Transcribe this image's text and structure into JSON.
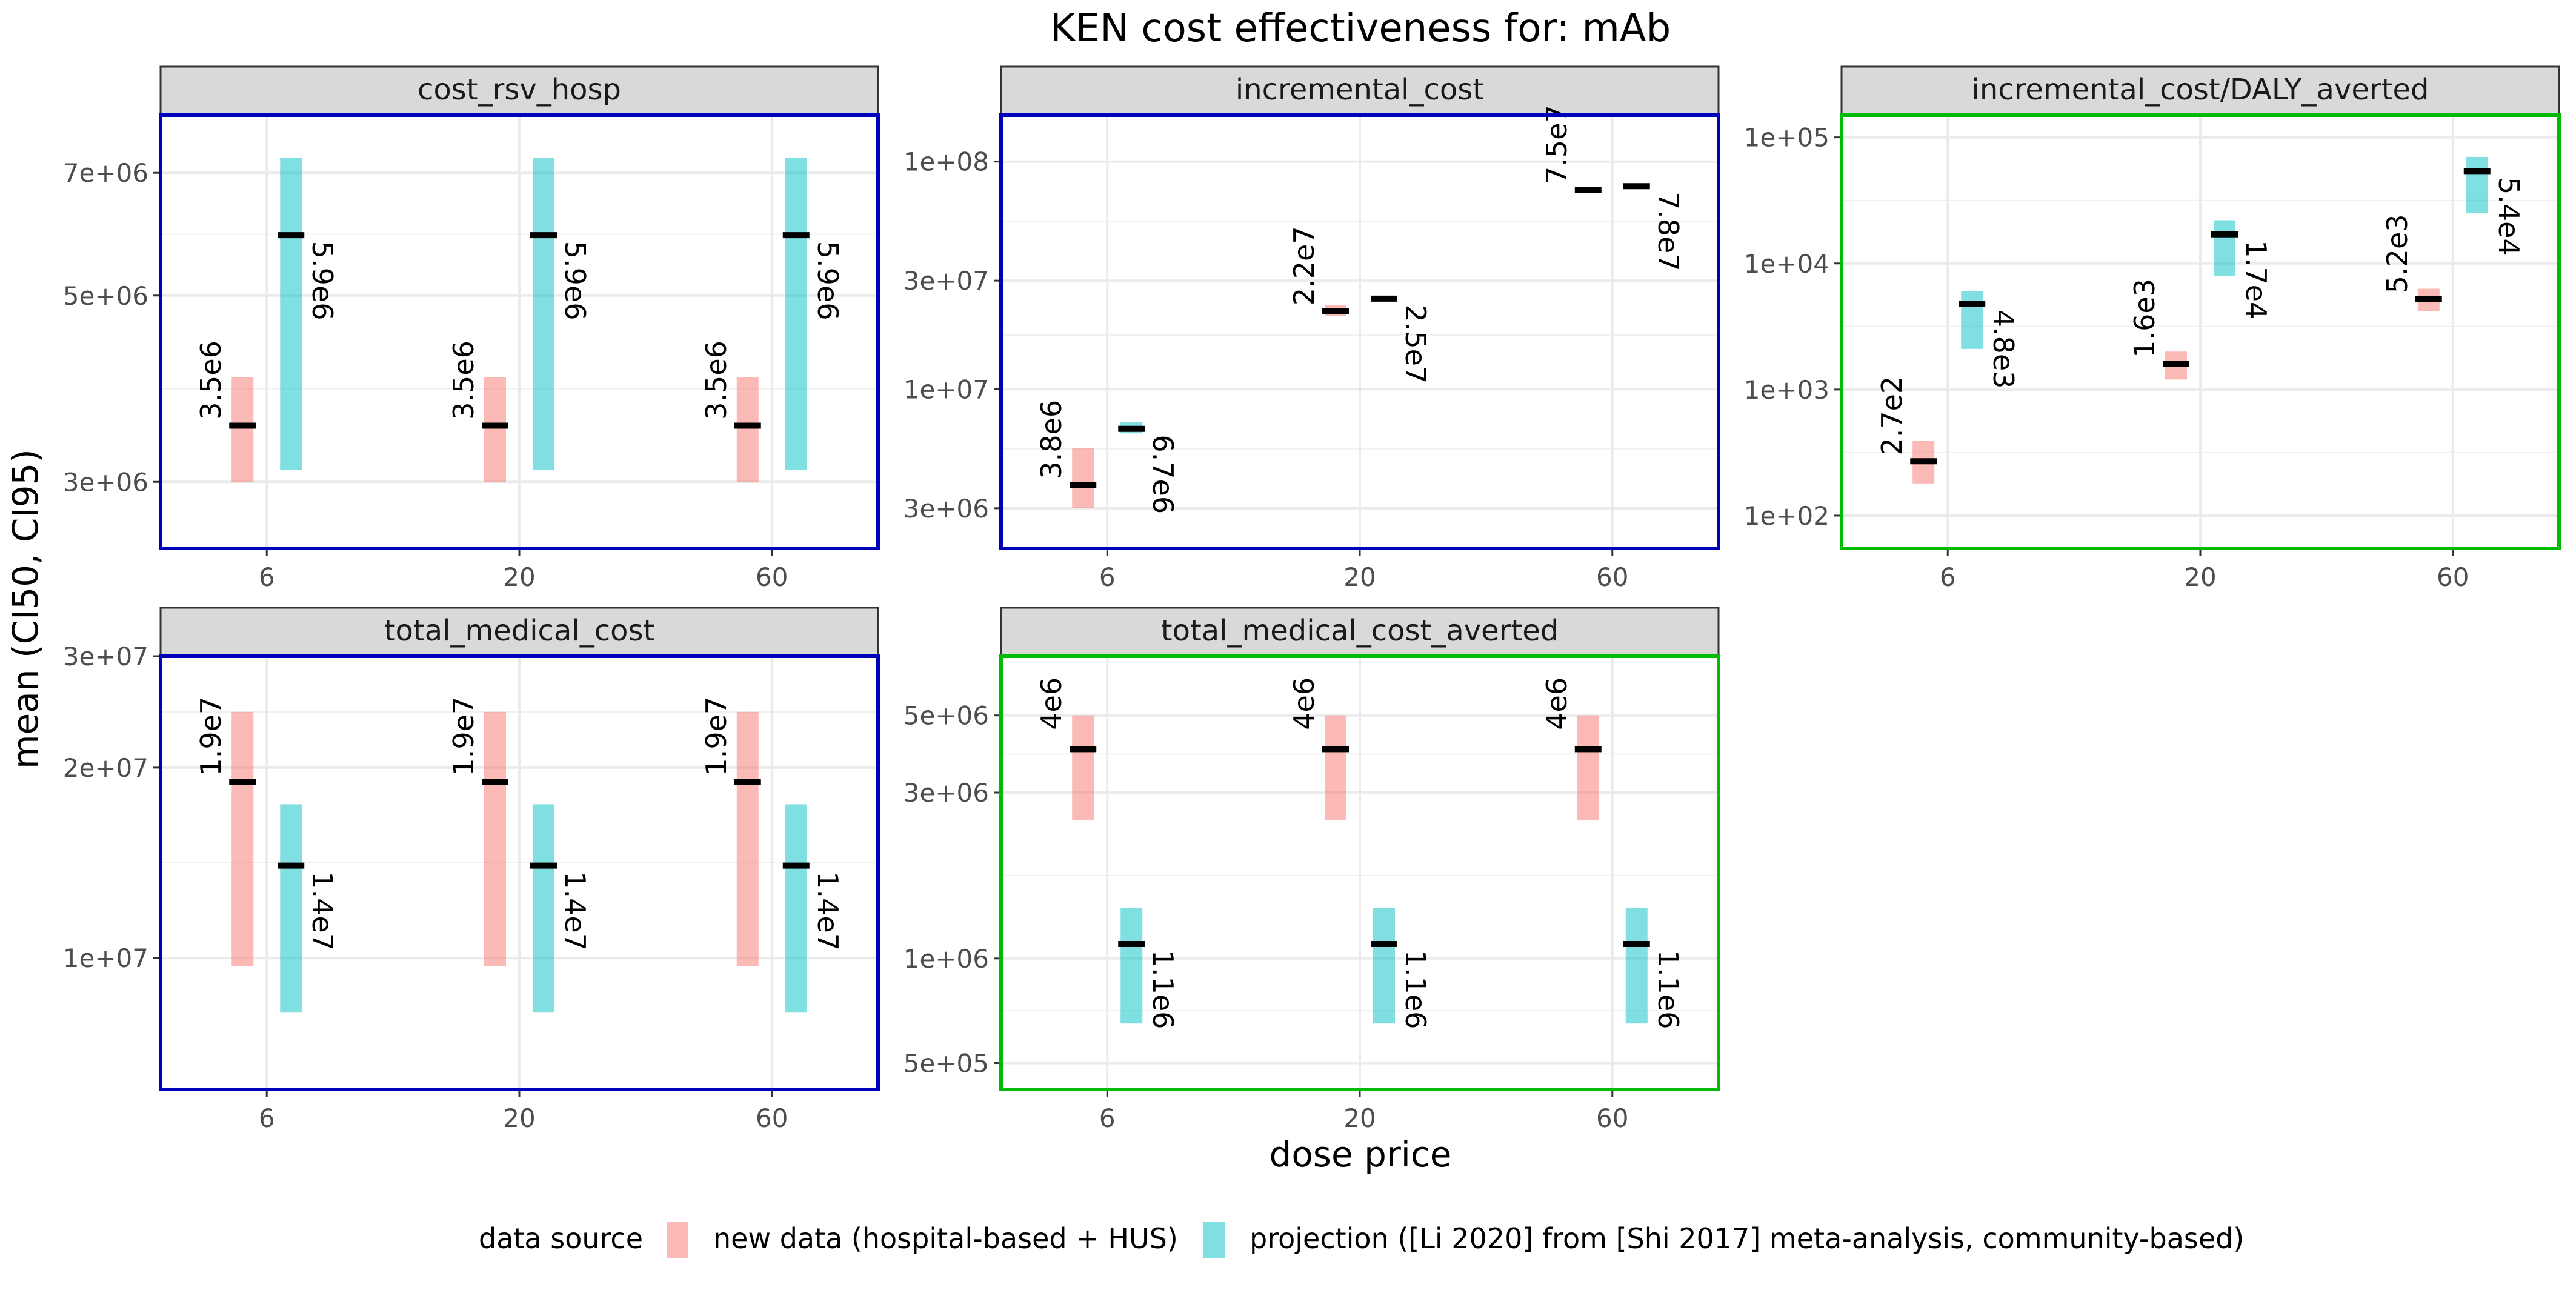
{
  "chart_data": {
    "type": "faceted-range",
    "title": "KEN cost effectiveness for: mAb",
    "xlabel": "dose price",
    "ylabel": "mean (CI50, CI95)",
    "categories": [
      "6",
      "20",
      "60"
    ],
    "legend": {
      "title": "data source",
      "position": "bottom",
      "entries": [
        {
          "key": "new",
          "label": "new data (hospital-based + HUS)",
          "color": "#F8766D"
        },
        {
          "key": "proj",
          "label": "projection ([Li 2020] from [Shi 2017] meta-analysis, community-based)",
          "color": "#00BFC4"
        }
      ]
    },
    "panels": [
      {
        "name": "cost_rsv_hosp",
        "border_color": "#0000BB",
        "scale": "log",
        "ylim": [
          2500000,
          8200000
        ],
        "ticks": [
          {
            "v": 3000000,
            "label": "3e+06"
          },
          {
            "v": 5000000,
            "label": "5e+06"
          },
          {
            "v": 7000000,
            "label": "7e+06"
          }
        ],
        "points": [
          {
            "x": "6",
            "series": "new",
            "mean": 3500000,
            "lo": 3000000,
            "hi": 4000000,
            "label": "3.5e6"
          },
          {
            "x": "6",
            "series": "proj",
            "mean": 5900000,
            "lo": 3100000,
            "hi": 7300000,
            "label": "5.9e6"
          },
          {
            "x": "20",
            "series": "new",
            "mean": 3500000,
            "lo": 3000000,
            "hi": 4000000,
            "label": "3.5e6"
          },
          {
            "x": "20",
            "series": "proj",
            "mean": 5900000,
            "lo": 3100000,
            "hi": 7300000,
            "label": "5.9e6"
          },
          {
            "x": "60",
            "series": "new",
            "mean": 3500000,
            "lo": 3000000,
            "hi": 4000000,
            "label": "3.5e6"
          },
          {
            "x": "60",
            "series": "proj",
            "mean": 5900000,
            "lo": 3100000,
            "hi": 7300000,
            "label": "5.9e6"
          }
        ]
      },
      {
        "name": "incremental_cost",
        "border_color": "#0000BB",
        "scale": "log",
        "ylim": [
          2000000,
          160000000
        ],
        "ticks": [
          {
            "v": 3000000,
            "label": "3e+06"
          },
          {
            "v": 10000000,
            "label": "1e+07"
          },
          {
            "v": 30000000,
            "label": "3e+07"
          },
          {
            "v": 100000000,
            "label": "1e+08"
          }
        ],
        "points": [
          {
            "x": "6",
            "series": "new",
            "mean": 3800000,
            "lo": 3000000,
            "hi": 5500000,
            "label": "3.8e6"
          },
          {
            "x": "6",
            "series": "proj",
            "mean": 6700000,
            "lo": 6400000,
            "hi": 7200000,
            "label": "6.7e6"
          },
          {
            "x": "20",
            "series": "new",
            "mean": 22000000,
            "lo": 21000000,
            "hi": 23500000,
            "label": "2.2e7"
          },
          {
            "x": "20",
            "series": "proj",
            "mean": 25000000,
            "lo": 24600000,
            "hi": 25400000,
            "label": "2.5e7"
          },
          {
            "x": "60",
            "series": "new",
            "mean": 75000000,
            "lo": 74000000,
            "hi": 76000000,
            "label": "7.5e7"
          },
          {
            "x": "60",
            "series": "proj",
            "mean": 78000000,
            "lo": 77000000,
            "hi": 79000000,
            "label": "7.8e7"
          }
        ]
      },
      {
        "name": "incremental_cost/DALY_averted",
        "border_color": "#00BB00",
        "scale": "log",
        "ylim": [
          55,
          150000
        ],
        "ticks": [
          {
            "v": 100,
            "label": "1e+02"
          },
          {
            "v": 1000,
            "label": "1e+03"
          },
          {
            "v": 10000,
            "label": "1e+04"
          },
          {
            "v": 100000,
            "label": "1e+05"
          }
        ],
        "points": [
          {
            "x": "6",
            "series": "new",
            "mean": 270,
            "lo": 180,
            "hi": 390,
            "label": "2.7e2"
          },
          {
            "x": "6",
            "series": "proj",
            "mean": 4800,
            "lo": 2100,
            "hi": 6000,
            "label": "4.8e3"
          },
          {
            "x": "20",
            "series": "new",
            "mean": 1600,
            "lo": 1200,
            "hi": 2000,
            "label": "1.6e3"
          },
          {
            "x": "20",
            "series": "proj",
            "mean": 17000,
            "lo": 8000,
            "hi": 22000,
            "label": "1.7e4"
          },
          {
            "x": "60",
            "series": "new",
            "mean": 5200,
            "lo": 4200,
            "hi": 6300,
            "label": "5.2e3"
          },
          {
            "x": "60",
            "series": "proj",
            "mean": 54000,
            "lo": 25000,
            "hi": 70000,
            "label": "5.4e4"
          }
        ]
      },
      {
        "name": "total_medical_cost",
        "border_color": "#0000BB",
        "scale": "log",
        "ylim": [
          6200000,
          30000000
        ],
        "ticks": [
          {
            "v": 10000000,
            "label": "1e+07"
          },
          {
            "v": 20000000,
            "label": "2e+07"
          },
          {
            "v": 30000000,
            "label": "3e+07"
          }
        ],
        "points": [
          {
            "x": "6",
            "series": "new",
            "mean": 19000000,
            "lo": 9700000,
            "hi": 24500000,
            "label": "1.9e7"
          },
          {
            "x": "6",
            "series": "proj",
            "mean": 14000000,
            "lo": 8200000,
            "hi": 17500000,
            "label": "1.4e7"
          },
          {
            "x": "20",
            "series": "new",
            "mean": 19000000,
            "lo": 9700000,
            "hi": 24500000,
            "label": "1.9e7"
          },
          {
            "x": "20",
            "series": "proj",
            "mean": 14000000,
            "lo": 8200000,
            "hi": 17500000,
            "label": "1.4e7"
          },
          {
            "x": "60",
            "series": "new",
            "mean": 19000000,
            "lo": 9700000,
            "hi": 24500000,
            "label": "1.9e7"
          },
          {
            "x": "60",
            "series": "proj",
            "mean": 14000000,
            "lo": 8200000,
            "hi": 17500000,
            "label": "1.4e7"
          }
        ]
      },
      {
        "name": "total_medical_cost_averted",
        "border_color": "#00BB00",
        "scale": "log",
        "ylim": [
          420000,
          7400000
        ],
        "ticks": [
          {
            "v": 500000,
            "label": "5e+05"
          },
          {
            "v": 1000000,
            "label": "1e+06"
          },
          {
            "v": 3000000,
            "label": "3e+06"
          },
          {
            "v": 5000000,
            "label": "5e+06"
          }
        ],
        "points": [
          {
            "x": "6",
            "series": "new",
            "mean": 4000000,
            "lo": 2500000,
            "hi": 5000000,
            "label": "4e6"
          },
          {
            "x": "6",
            "series": "proj",
            "mean": 1100000,
            "lo": 650000,
            "hi": 1400000,
            "label": "1.1e6"
          },
          {
            "x": "20",
            "series": "new",
            "mean": 4000000,
            "lo": 2500000,
            "hi": 5000000,
            "label": "4e6"
          },
          {
            "x": "20",
            "series": "proj",
            "mean": 1100000,
            "lo": 650000,
            "hi": 1400000,
            "label": "1.1e6"
          },
          {
            "x": "60",
            "series": "new",
            "mean": 4000000,
            "lo": 2500000,
            "hi": 5000000,
            "label": "4e6"
          },
          {
            "x": "60",
            "series": "proj",
            "mean": 1100000,
            "lo": 650000,
            "hi": 1400000,
            "label": "1.1e6"
          }
        ]
      }
    ]
  }
}
